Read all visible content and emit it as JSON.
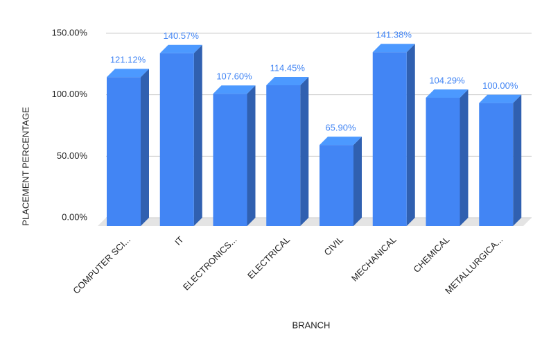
{
  "chart_data": {
    "type": "bar3d",
    "x_label": "BRANCH",
    "y_label": "PLACEMENT PERCENTAGE",
    "categories": [
      "COMPUTER SCI...",
      "IT",
      "ELECTRONICS...",
      "ELECTRICAL",
      "CIVIL",
      "MECHANICAL",
      "CHEMICAL",
      "METALLURGICA..."
    ],
    "values": [
      121.12,
      140.57,
      107.6,
      114.45,
      65.9,
      141.38,
      104.29,
      100.0
    ],
    "value_labels": [
      "121.12%",
      "140.57%",
      "107.60%",
      "114.45%",
      "65.90%",
      "141.38%",
      "104.29%",
      "100.00%"
    ],
    "color": "#4285f4",
    "ylim": [
      0,
      150
    ],
    "yticks": [
      {
        "value": 0,
        "label": "0.00%"
      },
      {
        "value": 50,
        "label": "50.00%"
      },
      {
        "value": 100,
        "label": "100.00%"
      },
      {
        "value": 150,
        "label": "150.00%"
      }
    ],
    "grid": true
  }
}
